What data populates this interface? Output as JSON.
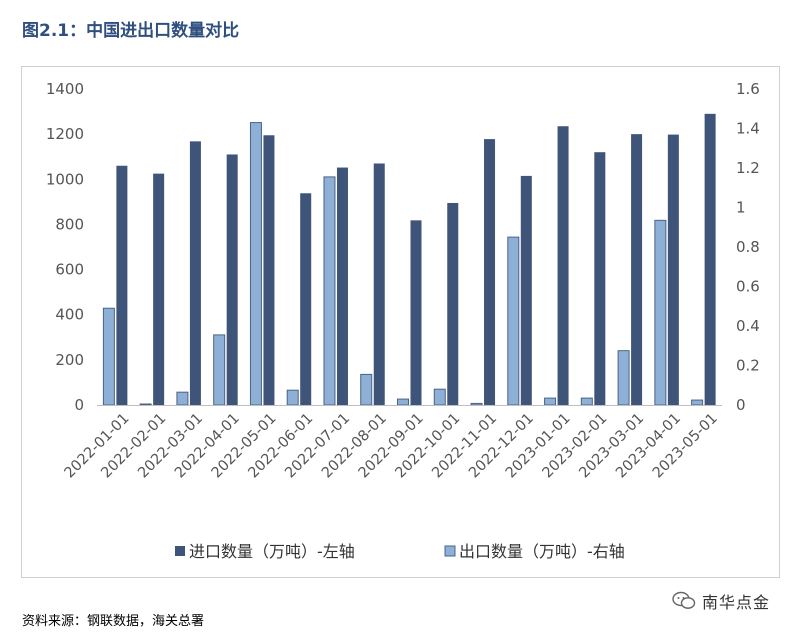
{
  "title": "图2.1：中国进出口数量对比",
  "source": "资料来源：钢联数据，海关总署",
  "watermark": "南华点金",
  "colors": {
    "import": "#3e5478",
    "export": "#8fb0d6",
    "exportBorder": "#4a6384",
    "axisText": "#555555"
  },
  "chart_data": {
    "type": "bar",
    "categories": [
      "2022-01-01",
      "2022-02-01",
      "2022-03-01",
      "2022-04-01",
      "2022-05-01",
      "2022-06-01",
      "2022-07-01",
      "2022-08-01",
      "2022-09-01",
      "2022-10-01",
      "2022-11-01",
      "2022-12-01",
      "2023-01-01",
      "2023-02-01",
      "2023-03-01",
      "2023-04-01",
      "2023-05-01"
    ],
    "series": [
      {
        "name": "进口数量（万吨）-左轴",
        "axis": "left",
        "values": [
          1060,
          1025,
          1168,
          1110,
          1195,
          938,
          1052,
          1070,
          818,
          895,
          1178,
          1015,
          1235,
          1120,
          1200,
          1198,
          1290
        ]
      },
      {
        "name": "出口数量（万吨）-右轴",
        "axis": "right",
        "values": [
          0.49,
          0.005,
          0.065,
          0.355,
          1.43,
          0.075,
          1.155,
          0.155,
          0.03,
          0.08,
          0.008,
          0.85,
          0.035,
          0.035,
          0.275,
          0.935,
          0.025
        ]
      }
    ],
    "yLeft": {
      "min": 0,
      "max": 1400,
      "ticks": [
        "0",
        "200",
        "400",
        "600",
        "800",
        "1000",
        "1200",
        "1400"
      ]
    },
    "yRight": {
      "min": 0,
      "max": 1.6,
      "ticks": [
        "0",
        "0.2",
        "0.4",
        "0.6",
        "0.8",
        "1",
        "1.2",
        "1.4",
        "1.6"
      ]
    },
    "grid": false,
    "legend": "bottom"
  }
}
